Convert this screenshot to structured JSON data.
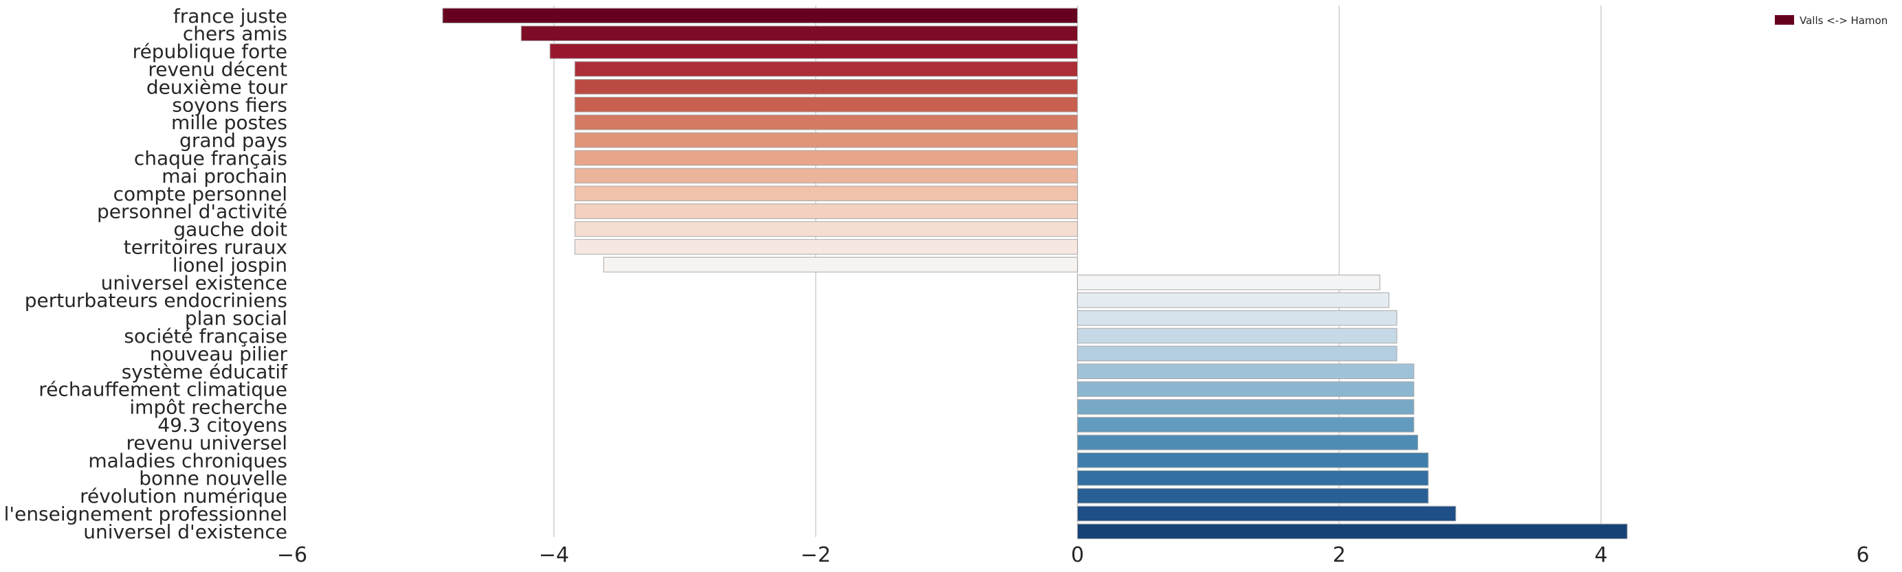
{
  "chart_data": {
    "type": "bar",
    "orientation": "horizontal",
    "categories": [
      "france juste",
      "chers amis",
      "république forte",
      "revenu décent",
      "deuxième tour",
      "soyons fiers",
      "mille postes",
      "grand pays",
      "chaque français",
      "mai prochain",
      "compte personnel",
      "personnel d'activité",
      "gauche doit",
      "territoires ruraux",
      "lionel jospin",
      "universel existence",
      "perturbateurs endocriniens",
      "plan social",
      "société française",
      "nouveau pilier",
      "système éducatif",
      "réchauffement climatique",
      "impôt recherche",
      "49.3 citoyens",
      "revenu universel",
      "maladies chroniques",
      "bonne nouvelle",
      "révolution numérique",
      "l'enseignement professionnel",
      "universel d'existence"
    ],
    "values": [
      -4.85,
      -4.25,
      -4.03,
      -3.84,
      -3.84,
      -3.84,
      -3.84,
      -3.84,
      -3.84,
      -3.84,
      -3.84,
      -3.84,
      -3.84,
      -3.84,
      -3.62,
      2.31,
      2.38,
      2.44,
      2.44,
      2.44,
      2.57,
      2.57,
      2.57,
      2.57,
      2.6,
      2.68,
      2.68,
      2.68,
      2.89,
      4.2
    ],
    "colors": [
      "#67001f",
      "#7f0c26",
      "#99172d",
      "#ac2e36",
      "#bb4a43",
      "#c8604f",
      "#d47a63",
      "#e09578",
      "#e7a58a",
      "#ecb49b",
      "#f0c2ac",
      "#f3d0c0",
      "#f5ddd2",
      "#f6e8e1",
      "#f7f3f1",
      "#f2f4f6",
      "#e4ebf1",
      "#d6e3ec",
      "#c6d9e6",
      "#b3cee0",
      "#9fc2d8",
      "#8bb6cf",
      "#77a8c6",
      "#629bbd",
      "#4e8cb4",
      "#3f7eac",
      "#336fa2",
      "#285f95",
      "#1e4f86",
      "#174276"
    ],
    "xlim": [
      -6,
      6
    ],
    "xticks": [
      -6,
      -4,
      -2,
      0,
      2,
      4,
      6
    ],
    "grid": true,
    "legend": {
      "label": "Valls <-> Hamon",
      "placement": "top-right",
      "color": "#67001f"
    },
    "title": "",
    "xlabel": "",
    "ylabel": ""
  }
}
